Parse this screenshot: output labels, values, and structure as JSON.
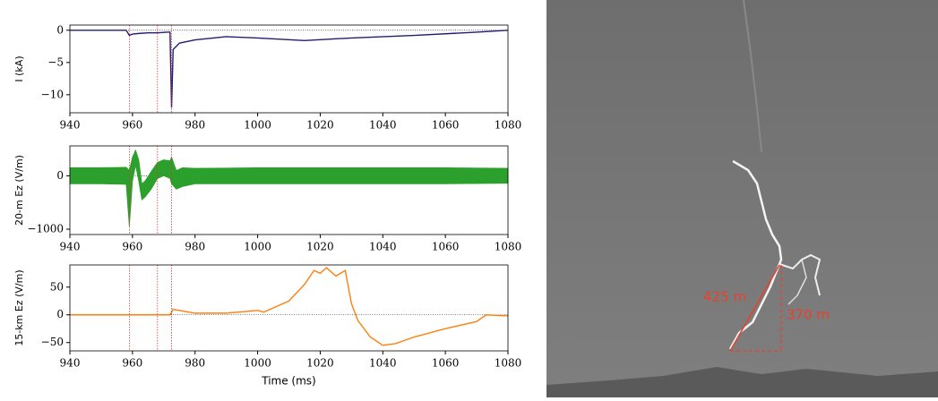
{
  "chart_data": [
    {
      "type": "line",
      "ylabel": "I (kA)",
      "color": "#1f1f70",
      "x": [
        940,
        950,
        958,
        959,
        960,
        962,
        965,
        968,
        971,
        972,
        972.5,
        973,
        975,
        980,
        990,
        1000,
        1015,
        1030,
        1050,
        1070,
        1080
      ],
      "values": [
        0,
        0,
        0,
        -0.8,
        -0.6,
        -0.5,
        -0.4,
        -0.4,
        -0.3,
        -0.3,
        -12,
        -3,
        -2,
        -1.5,
        -1,
        -1.2,
        -1.6,
        -1.2,
        -0.8,
        -0.3,
        0
      ],
      "xlim": [
        940,
        1080
      ],
      "ylim": [
        -12.8,
        0.8
      ],
      "xticks": [
        940,
        960,
        980,
        1000,
        1020,
        1040,
        1060,
        1080
      ],
      "yticks": [
        0,
        {
          "value": -5,
          "label": "−5"
        },
        {
          "value": -10,
          "label": "−10"
        }
      ],
      "markers": [
        959,
        968,
        972.5
      ],
      "marker_color": "#e03030"
    },
    {
      "type": "range_area",
      "ylabel": "20-m Ez (V/m)",
      "color": "#2ca02c",
      "x": [
        940,
        950,
        958,
        959,
        960,
        961,
        962,
        963,
        964,
        966,
        968,
        970,
        972,
        972.5,
        974,
        976,
        980,
        1000,
        1020,
        1040,
        1060,
        1080
      ],
      "upper": [
        150,
        150,
        160,
        100,
        350,
        480,
        300,
        -150,
        -100,
        80,
        250,
        300,
        280,
        350,
        100,
        150,
        140,
        150,
        150,
        150,
        150,
        140
      ],
      "lower": [
        -150,
        -150,
        -160,
        -950,
        -100,
        200,
        -100,
        -450,
        -400,
        -250,
        -50,
        0,
        -50,
        -150,
        -250,
        -200,
        -150,
        -150,
        -150,
        -150,
        -150,
        -140
      ],
      "xlim": [
        940,
        1080
      ],
      "ylim": [
        -1100,
        560
      ],
      "xticks": [
        940,
        960,
        980,
        1000,
        1020,
        1040,
        1060,
        1080
      ],
      "yticks": [
        0,
        {
          "value": -1000,
          "label": "−1000"
        }
      ],
      "markers": [
        959,
        968,
        972.5
      ],
      "marker_color": "#e03030"
    },
    {
      "type": "line",
      "ylabel": "15-km Ez (V/m)",
      "xlabel": "Time (ms)",
      "color": "#ff7f0e",
      "x": [
        940,
        972,
        973,
        975,
        980,
        990,
        1000,
        1002,
        1010,
        1015,
        1018,
        1020,
        1022,
        1025,
        1028,
        1030,
        1032,
        1036,
        1040,
        1044,
        1050,
        1060,
        1070,
        1073,
        1080
      ],
      "values": [
        0,
        0,
        10,
        8,
        3,
        3,
        8,
        5,
        25,
        55,
        80,
        75,
        85,
        70,
        80,
        20,
        -10,
        -40,
        -55,
        -52,
        -40,
        -25,
        -12,
        0,
        -2
      ],
      "xlim": [
        940,
        1080
      ],
      "ylim": [
        -65,
        90
      ],
      "xticks": [
        940,
        960,
        980,
        1000,
        1020,
        1040,
        1060,
        1080
      ],
      "yticks": [
        {
          "value": -50,
          "label": "−50"
        },
        0,
        50
      ],
      "markers": [
        959,
        968,
        972.5
      ],
      "marker_color": "#e03030"
    }
  ],
  "image": {
    "labels": [
      "425 m",
      "370 m"
    ]
  }
}
